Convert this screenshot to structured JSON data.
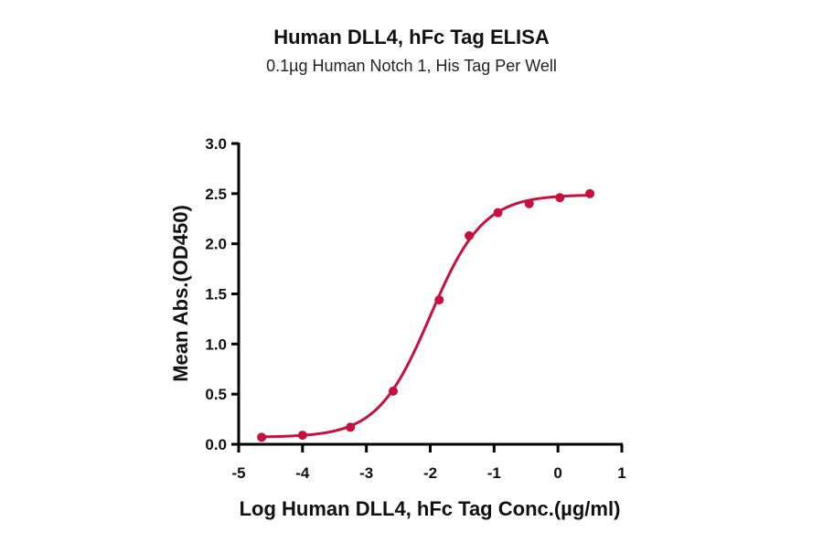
{
  "chart_data": {
    "type": "line",
    "title": "Human DLL4, hFc Tag ELISA",
    "subtitle": "0.1µg Human Notch 1, His Tag Per Well",
    "xlabel": "Log Human DLL4, hFc Tag Conc.(µg/ml)",
    "ylabel": "Mean Abs.(OD450)",
    "xlim": [
      -5,
      1
    ],
    "ylim": [
      0,
      3.0
    ],
    "x_ticks": [
      "-5",
      "-4",
      "-3",
      "-2",
      "-1",
      "0",
      "1"
    ],
    "y_ticks": [
      "0.0",
      "0.5",
      "1.0",
      "1.5",
      "2.0",
      "2.5",
      "3.0"
    ],
    "grid": false,
    "legend": null,
    "color": "#c8103e",
    "series": [
      {
        "name": "Human DLL4, hFc Tag",
        "fit": "4PL sigmoidal curve",
        "x": [
          -4.64,
          -4.0,
          -3.25,
          -2.58,
          -1.86,
          -1.39,
          -0.94,
          -0.45,
          0.03,
          0.5
        ],
        "y": [
          0.07,
          0.09,
          0.17,
          0.53,
          1.44,
          2.08,
          2.31,
          2.4,
          2.46,
          2.5
        ]
      }
    ]
  }
}
